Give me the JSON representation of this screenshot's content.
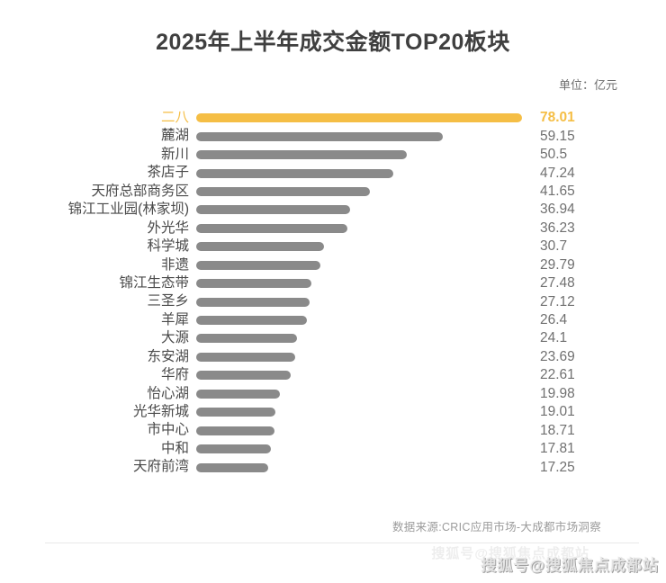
{
  "page": {
    "title": "2025年上半年成交金额TOP20板块",
    "unit_label": "单位：亿元",
    "source": "数据来源:CRIC应用市场-大成都市场洞察",
    "watermark": "搜狐号@搜狐焦点成都站"
  },
  "colors": {
    "highlight_yellow": "#f5be45",
    "bar_gray": "#8a8a8a",
    "label_text": "#4a4a4a",
    "value_text": "#707070",
    "title_text": "#3f3f3f"
  },
  "chart_data": {
    "type": "bar",
    "orientation": "horizontal",
    "title": "2025年上半年成交金额TOP20板块",
    "unit": "亿元",
    "xlim": [
      0,
      78.01
    ],
    "grid": false,
    "legend": false,
    "highlight_index": 0,
    "value_labels_position": "right",
    "categories": [
      "二八",
      "麓湖",
      "新川",
      "茶店子",
      "天府总部商务区",
      "锦江工业园(林家坝)",
      "外光华",
      "科学城",
      "非遗",
      "锦江生态带",
      "三圣乡",
      "羊犀",
      "大源",
      "东安湖",
      "华府",
      "怡心湖",
      "光华新城",
      "市中心",
      "中和",
      "天府前湾"
    ],
    "values": [
      78.01,
      59.15,
      50.5,
      47.24,
      41.65,
      36.94,
      36.23,
      30.7,
      29.79,
      27.48,
      27.12,
      26.4,
      24.1,
      23.69,
      22.61,
      19.98,
      19.01,
      18.71,
      17.81,
      17.25
    ]
  }
}
